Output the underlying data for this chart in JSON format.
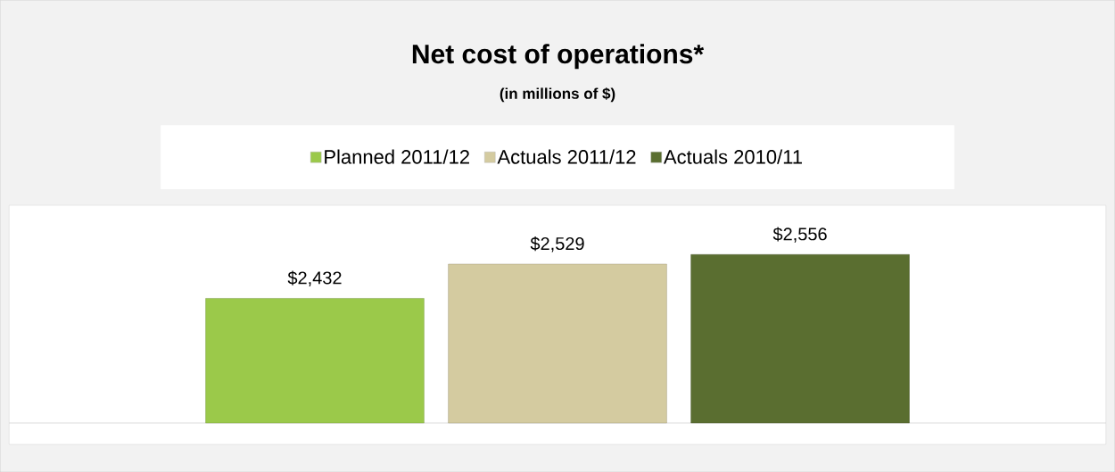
{
  "chart_data": {
    "type": "bar",
    "title": "Net cost of operations*",
    "subtitle": "(in millions of $)",
    "categories": [
      null
    ],
    "series": [
      {
        "name": "Planned 2011/12",
        "color": "#9bc94a",
        "values": [
          2432
        ],
        "value_labels": [
          "$2,432"
        ]
      },
      {
        "name": "Actuals 2011/12",
        "color": "#d4cba0",
        "values": [
          2529
        ],
        "value_labels": [
          "$2,529"
        ]
      },
      {
        "name": "Actuals 2010/11",
        "color": "#5a6e30",
        "values": [
          2556
        ],
        "value_labels": [
          "$2,556"
        ]
      }
    ],
    "ylim": [
      2080,
      2690
    ],
    "tick_labels": false,
    "legend": "top",
    "grid": false
  }
}
